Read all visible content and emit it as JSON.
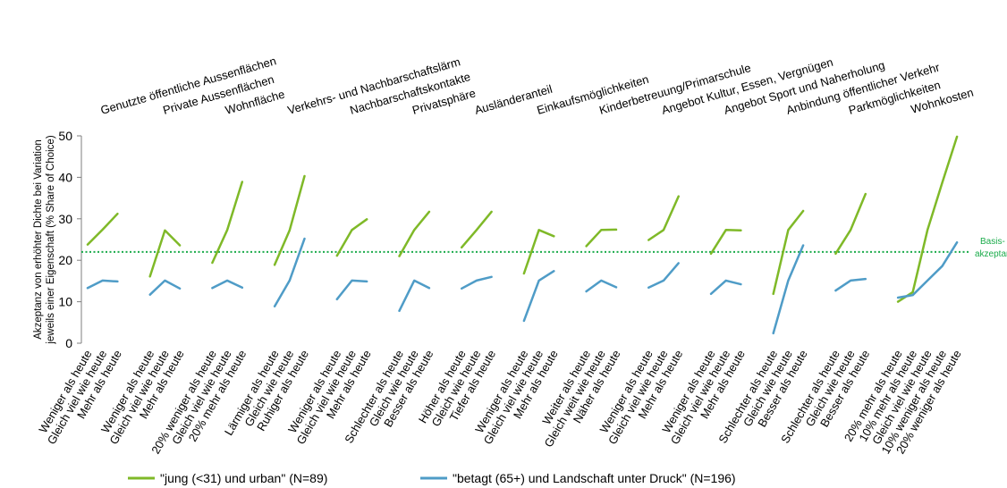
{
  "chart_data": {
    "type": "line",
    "ylabel_lines": [
      "Akzeptanz von erhöhter Dichte bei Variation",
      "jeweils einer Eigenschaft (% Share of Choice)"
    ],
    "ylim": [
      0,
      50
    ],
    "yticks": [
      0,
      10,
      20,
      30,
      40,
      50
    ],
    "grid": false,
    "baseline": {
      "value": 22,
      "label_lines": [
        "Basis-",
        "akzeptanz"
      ],
      "color": "#1aab4a"
    },
    "legend_position": "bottom",
    "series": [
      {
        "name": "\"jung (<31) und urban\" (N=89)",
        "color": "#7fb928"
      },
      {
        "name": "\"betagt (65+) und Landschaft unter Druck\" (N=196)",
        "color": "#4f9cc7"
      }
    ],
    "groups": [
      {
        "category": "Genutzte öffentliche Aussenflächen",
        "levels": [
          "Weniger als heute",
          "Gleich viel wie heute",
          "Mehr als heute"
        ],
        "series_values": [
          [
            23.8,
            27.4,
            31.2
          ],
          [
            13.3,
            15.1,
            14.9
          ]
        ]
      },
      {
        "category": "Private Aussenflächen",
        "levels": [
          "Weniger als heute",
          "Gleich viel wie heute",
          "Mehr als heute"
        ],
        "series_values": [
          [
            16.1,
            27.2,
            23.6
          ],
          [
            11.7,
            15.1,
            13.2
          ]
        ]
      },
      {
        "category": "Wohnfläche",
        "levels": [
          "20% weniger als heute",
          "Gleich viel wie heute",
          "20% mehr als heute"
        ],
        "series_values": [
          [
            19.4,
            27.3,
            38.9
          ],
          [
            13.3,
            15.1,
            13.4
          ]
        ]
      },
      {
        "category": "Verkehrs- und Nachbarschaftslärm",
        "levels": [
          "Lärmiger als heute",
          "Gleich wie heute",
          "Ruhiger als heute"
        ],
        "series_values": [
          [
            18.9,
            27.2,
            40.3
          ],
          [
            8.9,
            15.1,
            25.2
          ]
        ]
      },
      {
        "category": "Nachbarschaftskontakte",
        "levels": [
          "Weniger als heute",
          "Gleich viel wie heute",
          "Mehr als heute"
        ],
        "series_values": [
          [
            21.1,
            27.3,
            29.9
          ],
          [
            10.6,
            15.1,
            14.9
          ]
        ]
      },
      {
        "category": "Privatsphäre",
        "levels": [
          "Schlechter als heute",
          "Gleich wie heute",
          "Besser als heute"
        ],
        "series_values": [
          [
            21.0,
            27.3,
            31.7
          ],
          [
            7.8,
            15.1,
            13.3
          ]
        ]
      },
      {
        "category": "Ausländeranteil",
        "levels": [
          "Höher als heute",
          "Gleich wie heute",
          "Tiefer als heute"
        ],
        "series_values": [
          [
            23.1,
            27.3,
            31.7
          ],
          [
            13.2,
            15.1,
            16.0
          ]
        ]
      },
      {
        "category": "Einkaufsmöglichkeiten",
        "levels": [
          "Weniger als heute",
          "Gleich viel wie heute",
          "Mehr als heute"
        ],
        "series_values": [
          [
            16.8,
            27.3,
            25.8
          ],
          [
            5.4,
            15.1,
            17.4
          ]
        ]
      },
      {
        "category": "Kinderbetreuung/Primarschule",
        "levels": [
          "Weiter als heute",
          "Gleich weit wie heute",
          "Näher als heute"
        ],
        "series_values": [
          [
            23.4,
            27.3,
            27.4
          ],
          [
            12.5,
            15.1,
            13.5
          ]
        ]
      },
      {
        "category": "Angebot Kultur, Essen, Vergnügen",
        "levels": [
          "Weniger als heute",
          "Gleich viel wie heute",
          "Mehr als heute"
        ],
        "series_values": [
          [
            24.9,
            27.3,
            35.4
          ],
          [
            13.4,
            15.1,
            19.3
          ]
        ]
      },
      {
        "category": "Angebot Sport und Naherholung",
        "levels": [
          "Weniger als heute",
          "Gleich viel wie heute",
          "Mehr als heute"
        ],
        "series_values": [
          [
            21.6,
            27.3,
            27.2
          ],
          [
            11.9,
            15.1,
            14.2
          ]
        ]
      },
      {
        "category": "Anbindung öffentlicher Verkehr",
        "levels": [
          "Schlechter als heute",
          "Gleich wie heute",
          "Besser als heute"
        ],
        "series_values": [
          [
            11.9,
            27.3,
            31.9
          ],
          [
            2.4,
            15.1,
            23.6
          ]
        ]
      },
      {
        "category": "Parkmöglichkeiten",
        "levels": [
          "Schlechter als heute",
          "Gleich wie heute",
          "Besser als heute"
        ],
        "series_values": [
          [
            21.6,
            27.3,
            36.0
          ],
          [
            12.7,
            15.1,
            15.5
          ]
        ]
      },
      {
        "category": "Wohnkosten",
        "levels": [
          "20% mehr als heute",
          "10% mehr als heute",
          "Gleich viel wie heute",
          "10% weniger als heute",
          "20% weniger als heute"
        ],
        "series_values": [
          [
            10.0,
            12.3,
            27.3,
            38.7,
            49.8
          ],
          [
            11.0,
            11.6,
            15.1,
            18.6,
            24.3
          ]
        ]
      }
    ]
  }
}
